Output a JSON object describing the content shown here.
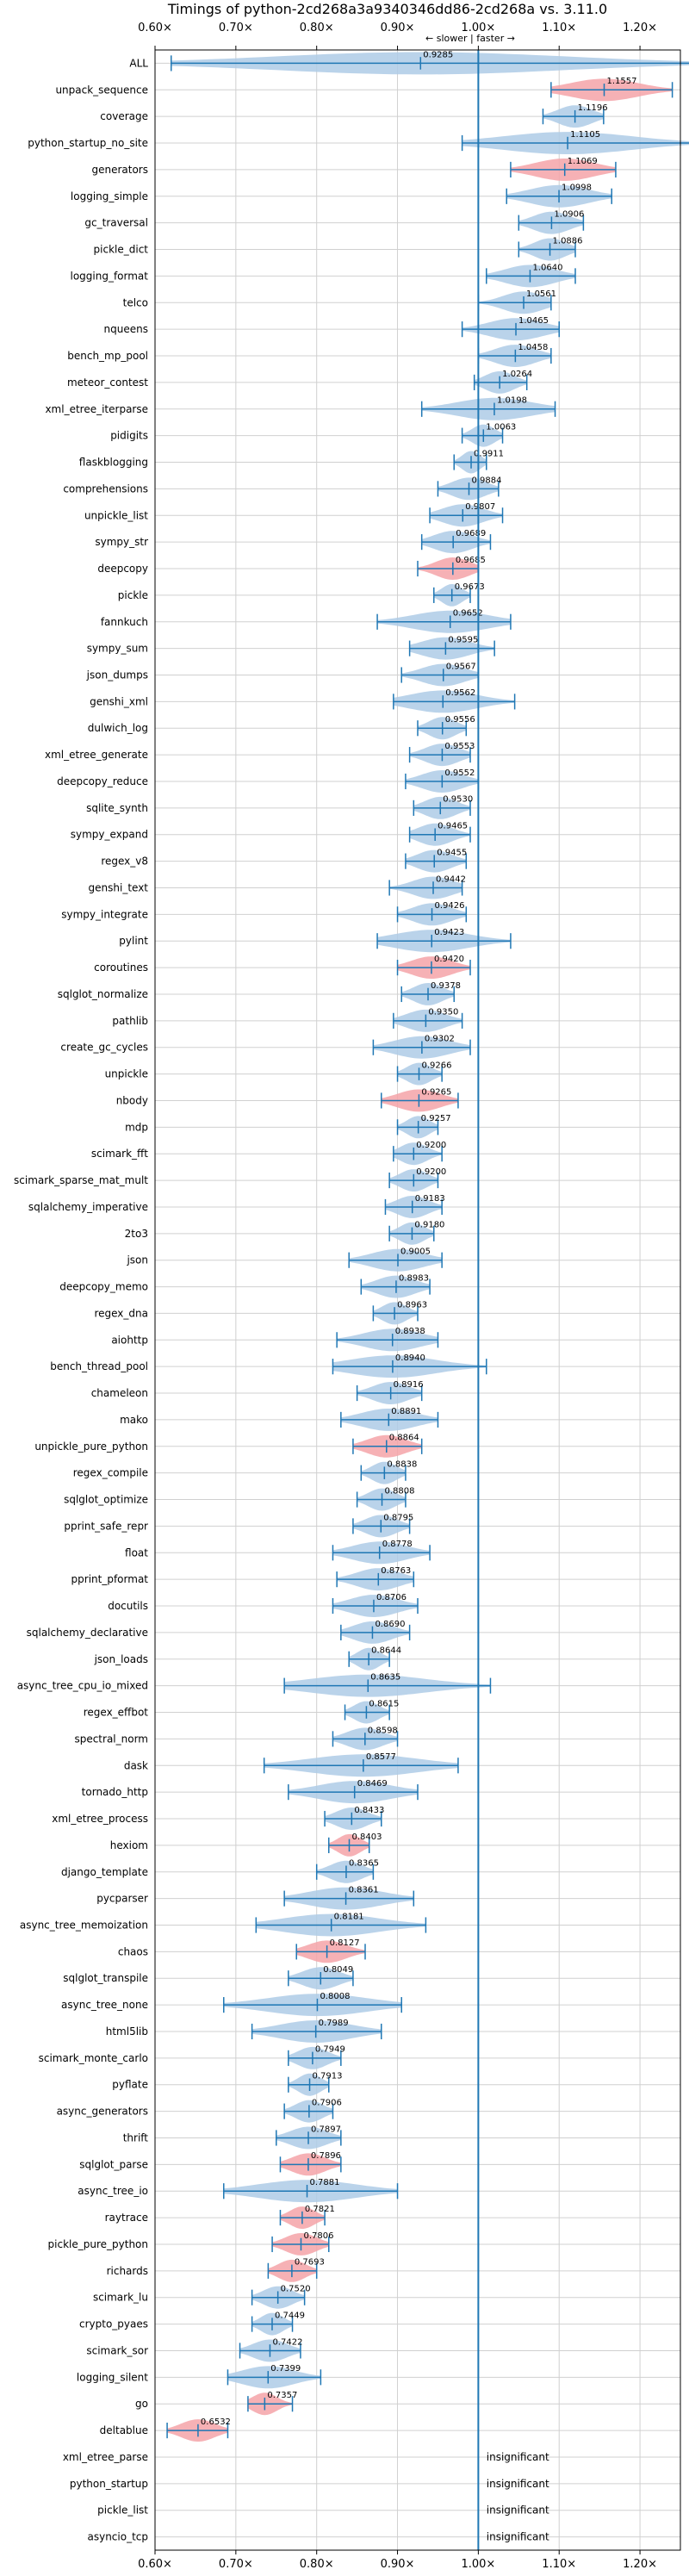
{
  "chart_data": {
    "type": "violin",
    "title": "Timings of python-2cd268a3a9340346dd86-2cd268a vs. 3.11.0",
    "axis_note": "← slower | faster →",
    "xlim": [
      0.6,
      1.25
    ],
    "xticks": [
      0.6,
      0.7,
      0.8,
      0.9,
      1.0,
      1.1,
      1.2
    ],
    "xtick_labels": [
      "0.60×",
      "0.70×",
      "0.80×",
      "0.90×",
      "1.00×",
      "1.10×",
      "1.20×"
    ],
    "reference_line": 1.0,
    "grid": true,
    "insignificant_label": "insignificant",
    "colors": {
      "normal": "#aecbe6",
      "highlight": "#f4a3a8",
      "line": "#1f77b4",
      "grid": "#d0d0d0"
    },
    "benchmarks": [
      {
        "name": "ALL",
        "median": 0.9285,
        "min": 0.62,
        "max": 1.265,
        "highlight": false
      },
      {
        "name": "unpack_sequence",
        "median": 1.1557,
        "min": 1.09,
        "max": 1.24,
        "highlight": true
      },
      {
        "name": "coverage",
        "median": 1.1196,
        "min": 1.08,
        "max": 1.155,
        "highlight": false
      },
      {
        "name": "python_startup_no_site",
        "median": 1.1105,
        "min": 0.98,
        "max": 1.265,
        "highlight": false
      },
      {
        "name": "generators",
        "median": 1.1069,
        "min": 1.04,
        "max": 1.17,
        "highlight": true
      },
      {
        "name": "logging_simple",
        "median": 1.0998,
        "min": 1.035,
        "max": 1.165,
        "highlight": false
      },
      {
        "name": "gc_traversal",
        "median": 1.0906,
        "min": 1.05,
        "max": 1.13,
        "highlight": false
      },
      {
        "name": "pickle_dict",
        "median": 1.0886,
        "min": 1.05,
        "max": 1.12,
        "highlight": false
      },
      {
        "name": "logging_format",
        "median": 1.064,
        "min": 1.01,
        "max": 1.12,
        "highlight": false
      },
      {
        "name": "telco",
        "median": 1.0561,
        "min": 1.0,
        "max": 1.09,
        "highlight": false
      },
      {
        "name": "nqueens",
        "median": 1.0465,
        "min": 0.98,
        "max": 1.1,
        "highlight": false
      },
      {
        "name": "bench_mp_pool",
        "median": 1.0458,
        "min": 1.0,
        "max": 1.09,
        "highlight": false
      },
      {
        "name": "meteor_contest",
        "median": 1.0264,
        "min": 0.995,
        "max": 1.06,
        "highlight": false
      },
      {
        "name": "xml_etree_iterparse",
        "median": 1.0198,
        "min": 0.93,
        "max": 1.095,
        "highlight": false
      },
      {
        "name": "pidigits",
        "median": 1.0063,
        "min": 0.98,
        "max": 1.03,
        "highlight": false
      },
      {
        "name": "flaskblogging",
        "median": 0.9911,
        "min": 0.97,
        "max": 1.01,
        "highlight": false
      },
      {
        "name": "comprehensions",
        "median": 0.9884,
        "min": 0.95,
        "max": 1.025,
        "highlight": false
      },
      {
        "name": "unpickle_list",
        "median": 0.9807,
        "min": 0.94,
        "max": 1.03,
        "highlight": false
      },
      {
        "name": "sympy_str",
        "median": 0.9689,
        "min": 0.93,
        "max": 1.015,
        "highlight": false
      },
      {
        "name": "deepcopy",
        "median": 0.9685,
        "min": 0.925,
        "max": 1.0,
        "highlight": true
      },
      {
        "name": "pickle",
        "median": 0.9673,
        "min": 0.945,
        "max": 0.99,
        "highlight": false
      },
      {
        "name": "fannkuch",
        "median": 0.9652,
        "min": 0.875,
        "max": 1.04,
        "highlight": false
      },
      {
        "name": "sympy_sum",
        "median": 0.9595,
        "min": 0.915,
        "max": 1.02,
        "highlight": false
      },
      {
        "name": "json_dumps",
        "median": 0.9567,
        "min": 0.905,
        "max": 1.0,
        "highlight": false
      },
      {
        "name": "genshi_xml",
        "median": 0.9562,
        "min": 0.895,
        "max": 1.045,
        "highlight": false
      },
      {
        "name": "dulwich_log",
        "median": 0.9556,
        "min": 0.925,
        "max": 0.985,
        "highlight": false
      },
      {
        "name": "xml_etree_generate",
        "median": 0.9553,
        "min": 0.915,
        "max": 0.99,
        "highlight": false
      },
      {
        "name": "deepcopy_reduce",
        "median": 0.9552,
        "min": 0.91,
        "max": 1.0,
        "highlight": false
      },
      {
        "name": "sqlite_synth",
        "median": 0.953,
        "min": 0.92,
        "max": 0.99,
        "highlight": false
      },
      {
        "name": "sympy_expand",
        "median": 0.9465,
        "min": 0.915,
        "max": 0.99,
        "highlight": false
      },
      {
        "name": "regex_v8",
        "median": 0.9455,
        "min": 0.91,
        "max": 0.985,
        "highlight": false
      },
      {
        "name": "genshi_text",
        "median": 0.9442,
        "min": 0.89,
        "max": 0.98,
        "highlight": false
      },
      {
        "name": "sympy_integrate",
        "median": 0.9426,
        "min": 0.9,
        "max": 0.985,
        "highlight": false
      },
      {
        "name": "pylint",
        "median": 0.9423,
        "min": 0.875,
        "max": 1.04,
        "highlight": false
      },
      {
        "name": "coroutines",
        "median": 0.942,
        "min": 0.9,
        "max": 0.99,
        "highlight": true
      },
      {
        "name": "sqlglot_normalize",
        "median": 0.9378,
        "min": 0.905,
        "max": 0.97,
        "highlight": false
      },
      {
        "name": "pathlib",
        "median": 0.935,
        "min": 0.895,
        "max": 0.98,
        "highlight": false
      },
      {
        "name": "create_gc_cycles",
        "median": 0.9302,
        "min": 0.87,
        "max": 0.99,
        "highlight": false
      },
      {
        "name": "unpickle",
        "median": 0.9266,
        "min": 0.9,
        "max": 0.955,
        "highlight": false
      },
      {
        "name": "nbody",
        "median": 0.9265,
        "min": 0.88,
        "max": 0.975,
        "highlight": true
      },
      {
        "name": "mdp",
        "median": 0.9257,
        "min": 0.9,
        "max": 0.95,
        "highlight": false
      },
      {
        "name": "scimark_fft",
        "median": 0.92,
        "min": 0.895,
        "max": 0.955,
        "highlight": false
      },
      {
        "name": "scimark_sparse_mat_mult",
        "median": 0.92,
        "min": 0.89,
        "max": 0.95,
        "highlight": false
      },
      {
        "name": "sqlalchemy_imperative",
        "median": 0.9183,
        "min": 0.885,
        "max": 0.955,
        "highlight": false
      },
      {
        "name": "2to3",
        "median": 0.918,
        "min": 0.89,
        "max": 0.945,
        "highlight": false
      },
      {
        "name": "json",
        "median": 0.9005,
        "min": 0.84,
        "max": 0.955,
        "highlight": false
      },
      {
        "name": "deepcopy_memo",
        "median": 0.8983,
        "min": 0.855,
        "max": 0.94,
        "highlight": false
      },
      {
        "name": "regex_dna",
        "median": 0.8963,
        "min": 0.87,
        "max": 0.925,
        "highlight": false
      },
      {
        "name": "aiohttp",
        "median": 0.8938,
        "min": 0.825,
        "max": 0.95,
        "highlight": false
      },
      {
        "name": "bench_thread_pool",
        "median": 0.894,
        "min": 0.82,
        "max": 1.01,
        "highlight": false
      },
      {
        "name": "chameleon",
        "median": 0.8916,
        "min": 0.85,
        "max": 0.93,
        "highlight": false
      },
      {
        "name": "mako",
        "median": 0.8891,
        "min": 0.83,
        "max": 0.95,
        "highlight": false
      },
      {
        "name": "unpickle_pure_python",
        "median": 0.8864,
        "min": 0.845,
        "max": 0.93,
        "highlight": true
      },
      {
        "name": "regex_compile",
        "median": 0.8838,
        "min": 0.855,
        "max": 0.91,
        "highlight": false
      },
      {
        "name": "sqlglot_optimize",
        "median": 0.8808,
        "min": 0.85,
        "max": 0.91,
        "highlight": false
      },
      {
        "name": "pprint_safe_repr",
        "median": 0.8795,
        "min": 0.845,
        "max": 0.915,
        "highlight": false
      },
      {
        "name": "float",
        "median": 0.8778,
        "min": 0.82,
        "max": 0.94,
        "highlight": false
      },
      {
        "name": "pprint_pformat",
        "median": 0.8763,
        "min": 0.825,
        "max": 0.92,
        "highlight": false
      },
      {
        "name": "docutils",
        "median": 0.8706,
        "min": 0.82,
        "max": 0.925,
        "highlight": false
      },
      {
        "name": "sqlalchemy_declarative",
        "median": 0.869,
        "min": 0.83,
        "max": 0.915,
        "highlight": false
      },
      {
        "name": "json_loads",
        "median": 0.8644,
        "min": 0.84,
        "max": 0.89,
        "highlight": false
      },
      {
        "name": "async_tree_cpu_io_mixed",
        "median": 0.8635,
        "min": 0.76,
        "max": 1.015,
        "highlight": false
      },
      {
        "name": "regex_effbot",
        "median": 0.8615,
        "min": 0.835,
        "max": 0.89,
        "highlight": false
      },
      {
        "name": "spectral_norm",
        "median": 0.8598,
        "min": 0.82,
        "max": 0.9,
        "highlight": false
      },
      {
        "name": "dask",
        "median": 0.8577,
        "min": 0.735,
        "max": 0.975,
        "highlight": false
      },
      {
        "name": "tornado_http",
        "median": 0.8469,
        "min": 0.765,
        "max": 0.925,
        "highlight": false
      },
      {
        "name": "xml_etree_process",
        "median": 0.8433,
        "min": 0.81,
        "max": 0.88,
        "highlight": false
      },
      {
        "name": "hexiom",
        "median": 0.8403,
        "min": 0.815,
        "max": 0.865,
        "highlight": true
      },
      {
        "name": "django_template",
        "median": 0.8365,
        "min": 0.8,
        "max": 0.87,
        "highlight": false
      },
      {
        "name": "pycparser",
        "median": 0.8361,
        "min": 0.76,
        "max": 0.92,
        "highlight": false
      },
      {
        "name": "async_tree_memoization",
        "median": 0.8181,
        "min": 0.725,
        "max": 0.935,
        "highlight": false
      },
      {
        "name": "chaos",
        "median": 0.8127,
        "min": 0.775,
        "max": 0.86,
        "highlight": true
      },
      {
        "name": "sqlglot_transpile",
        "median": 0.8049,
        "min": 0.765,
        "max": 0.845,
        "highlight": false
      },
      {
        "name": "async_tree_none",
        "median": 0.8008,
        "min": 0.685,
        "max": 0.905,
        "highlight": false
      },
      {
        "name": "html5lib",
        "median": 0.7989,
        "min": 0.72,
        "max": 0.88,
        "highlight": false
      },
      {
        "name": "scimark_monte_carlo",
        "median": 0.7949,
        "min": 0.765,
        "max": 0.83,
        "highlight": false
      },
      {
        "name": "pyflate",
        "median": 0.7913,
        "min": 0.765,
        "max": 0.815,
        "highlight": false
      },
      {
        "name": "async_generators",
        "median": 0.7906,
        "min": 0.76,
        "max": 0.82,
        "highlight": false
      },
      {
        "name": "thrift",
        "median": 0.7897,
        "min": 0.75,
        "max": 0.83,
        "highlight": false
      },
      {
        "name": "sqlglot_parse",
        "median": 0.7896,
        "min": 0.755,
        "max": 0.83,
        "highlight": true
      },
      {
        "name": "async_tree_io",
        "median": 0.7881,
        "min": 0.685,
        "max": 0.9,
        "highlight": false
      },
      {
        "name": "raytrace",
        "median": 0.7821,
        "min": 0.755,
        "max": 0.81,
        "highlight": true
      },
      {
        "name": "pickle_pure_python",
        "median": 0.7806,
        "min": 0.745,
        "max": 0.815,
        "highlight": true
      },
      {
        "name": "richards",
        "median": 0.7693,
        "min": 0.74,
        "max": 0.8,
        "highlight": true
      },
      {
        "name": "scimark_lu",
        "median": 0.752,
        "min": 0.72,
        "max": 0.785,
        "highlight": false
      },
      {
        "name": "crypto_pyaes",
        "median": 0.7449,
        "min": 0.72,
        "max": 0.77,
        "highlight": false
      },
      {
        "name": "scimark_sor",
        "median": 0.7422,
        "min": 0.705,
        "max": 0.78,
        "highlight": false
      },
      {
        "name": "logging_silent",
        "median": 0.7399,
        "min": 0.69,
        "max": 0.805,
        "highlight": false
      },
      {
        "name": "go",
        "median": 0.7357,
        "min": 0.715,
        "max": 0.77,
        "highlight": true
      },
      {
        "name": "deltablue",
        "median": 0.6532,
        "min": 0.615,
        "max": 0.69,
        "highlight": true
      },
      {
        "name": "xml_etree_parse",
        "median": null,
        "min": null,
        "max": null,
        "highlight": false
      },
      {
        "name": "python_startup",
        "median": null,
        "min": null,
        "max": null,
        "highlight": false
      },
      {
        "name": "pickle_list",
        "median": null,
        "min": null,
        "max": null,
        "highlight": false
      },
      {
        "name": "asyncio_tcp",
        "median": null,
        "min": null,
        "max": null,
        "highlight": false
      }
    ]
  }
}
